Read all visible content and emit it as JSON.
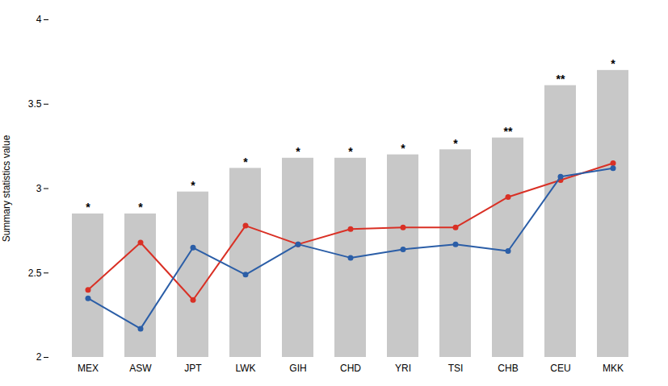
{
  "chart_data": {
    "type": "bar",
    "ylabel": "Summary statistics value",
    "categories": [
      "MEX",
      "ASW",
      "JPT",
      "LWK",
      "GIH",
      "CHD",
      "YRI",
      "TSI",
      "CHB",
      "CEU",
      "MKK"
    ],
    "series": [
      {
        "type": "bar",
        "color": "#c8c8c8",
        "values": [
          2.85,
          2.85,
          2.98,
          3.12,
          3.18,
          3.18,
          3.2,
          3.23,
          3.3,
          3.61,
          3.7
        ]
      },
      {
        "type": "line",
        "color": "#d93025",
        "marker": "circle",
        "values": [
          2.4,
          2.68,
          2.34,
          2.78,
          2.67,
          2.76,
          2.77,
          2.77,
          2.95,
          3.05,
          3.15
        ]
      },
      {
        "type": "line",
        "color": "#2b5ea7",
        "marker": "circle",
        "values": [
          2.35,
          2.17,
          2.65,
          2.49,
          2.67,
          2.59,
          2.64,
          2.67,
          2.63,
          3.07,
          3.12
        ]
      }
    ],
    "annotations": [
      "*",
      "*",
      "*",
      "*",
      "*",
      "*",
      "*",
      "*",
      "**",
      "**",
      "*"
    ],
    "ylim": [
      2.0,
      4.0
    ],
    "yticks": [
      2.0,
      2.5,
      3.0,
      3.5,
      4.0
    ],
    "grid": false
  }
}
